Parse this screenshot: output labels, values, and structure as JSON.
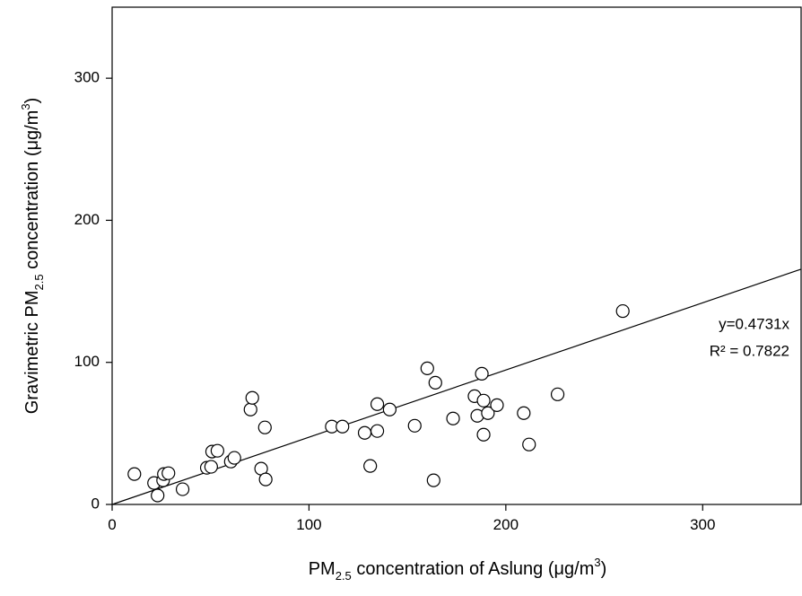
{
  "chart_data": {
    "type": "scatter",
    "xlabel": [
      "PM",
      "2.5",
      " concentration of Aslung (μg/m",
      "3",
      ")"
    ],
    "ylabel": [
      "Gravimetric PM",
      "2.5",
      " concentration (μg/m",
      "3",
      ")"
    ],
    "x": [
      11.3,
      21.3,
      23.1,
      25.9,
      26.3,
      28.6,
      35.8,
      48.1,
      50.3,
      50.8,
      53.5,
      60.3,
      62.1,
      70.3,
      71.2,
      75.7,
      77.6,
      78.0,
      111.6,
      117.0,
      128.3,
      131.1,
      134.7,
      134.7,
      141.0,
      153.7,
      160.1,
      163.3,
      164.2,
      173.2,
      184.1,
      185.5,
      187.8,
      188.7,
      188.7,
      190.9,
      195.5,
      209.1,
      211.8,
      226.3,
      259.4
    ],
    "values": [
      21.4,
      15.1,
      6.3,
      17.0,
      21.4,
      22.0,
      10.7,
      25.8,
      26.5,
      37.2,
      37.8,
      30.2,
      32.8,
      66.8,
      75.0,
      25.2,
      54.2,
      17.6,
      54.8,
      54.8,
      50.4,
      27.1,
      51.7,
      70.6,
      66.8,
      55.4,
      95.8,
      17.0,
      85.7,
      60.5,
      76.2,
      62.4,
      92.0,
      73.1,
      49.1,
      64.3,
      69.9,
      64.3,
      42.2,
      77.5,
      136.1
    ],
    "xlim": [
      0,
      350
    ],
    "ylim": [
      0,
      350
    ],
    "xticks": [
      0,
      100,
      200,
      300
    ],
    "yticks": [
      0,
      100,
      200,
      300
    ],
    "trendline": {
      "slope": 0.4731,
      "label": "y=0.4731x",
      "r2_label": "R² = 0.7822"
    }
  }
}
